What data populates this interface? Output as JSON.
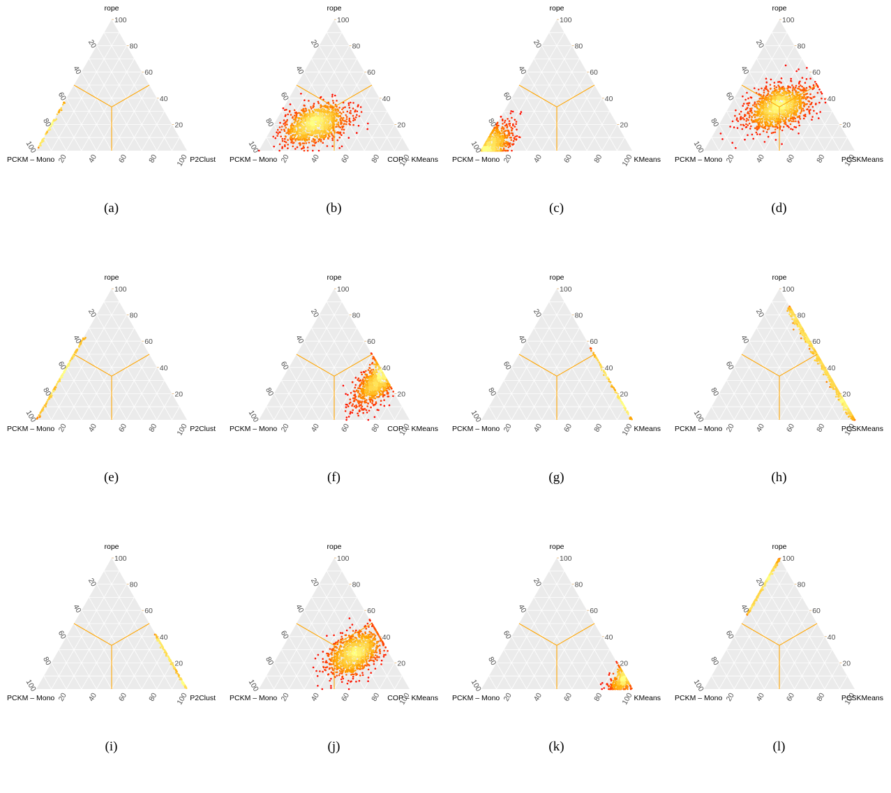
{
  "figure": {
    "panels": [
      {
        "caption": "(a)",
        "top": "rope",
        "left": "PCKM – Mono",
        "right": "P2Clust"
      },
      {
        "caption": "(b)",
        "top": "rope",
        "left": "PCKM – Mono",
        "right": "COP – KMeans"
      },
      {
        "caption": "(c)",
        "top": "rope",
        "left": "PCKM – Mono",
        "right": "KMeans"
      },
      {
        "caption": "(d)",
        "top": "rope",
        "left": "PCKM – Mono",
        "right": "PCSKMeans"
      },
      {
        "caption": "(e)",
        "top": "rope",
        "left": "PCKM – Mono",
        "right": "P2Clust"
      },
      {
        "caption": "(f)",
        "top": "rope",
        "left": "PCKM – Mono",
        "right": "COP – KMeans"
      },
      {
        "caption": "(g)",
        "top": "rope",
        "left": "PCKM – Mono",
        "right": "KMeans"
      },
      {
        "caption": "(h)",
        "top": "rope",
        "left": "PCKM – Mono",
        "right": "PCSKMeans"
      },
      {
        "caption": "(i)",
        "top": "rope",
        "left": "PCKM – Mono",
        "right": "P2Clust"
      },
      {
        "caption": "(j)",
        "top": "rope",
        "left": "PCKM – Mono",
        "right": "COP – KMeans"
      },
      {
        "caption": "(k)",
        "top": "rope",
        "left": "PCKM – Mono",
        "right": "KMeans"
      },
      {
        "caption": "(l)",
        "top": "rope",
        "left": "PCKM – Mono",
        "right": "PCSKMeans"
      }
    ]
  },
  "colors": {
    "panel_bg": "#ebebeb",
    "grid": "#ffffff",
    "region_lines": "#ffa500",
    "density_low": "#ff0000",
    "density_high": "#ffff66"
  },
  "chart_data": [
    {
      "type": "scatter",
      "subtype": "ternary-density",
      "axes": [
        "rope",
        "PCKM – Mono",
        "P2Clust"
      ],
      "ticks": [
        20,
        40,
        60,
        80,
        100
      ],
      "clusters": [
        {
          "shape": "line",
          "from": [
            0,
            100,
            0
          ],
          "to": [
            38,
            62,
            0
          ],
          "n": 60,
          "jitter": 0.6
        }
      ]
    },
    {
      "type": "scatter",
      "subtype": "ternary-density",
      "axes": [
        "rope",
        "PCKM – Mono",
        "COP – KMeans"
      ],
      "ticks": [
        20,
        40,
        60,
        80,
        100
      ],
      "clusters": [
        {
          "shape": "blob",
          "center": [
            20,
            53,
            27
          ],
          "sd_rope": 8,
          "sd_right": 10,
          "n": 1100
        }
      ]
    },
    {
      "type": "scatter",
      "subtype": "ternary-density",
      "axes": [
        "rope",
        "PCKM – Mono",
        "KMeans"
      ],
      "ticks": [
        20,
        40,
        60,
        80,
        100
      ],
      "clusters": [
        {
          "shape": "blob",
          "center": [
            5,
            90,
            5
          ],
          "sd_rope": 8,
          "sd_right": 6,
          "n": 650
        }
      ]
    },
    {
      "type": "scatter",
      "subtype": "ternary-density",
      "axes": [
        "rope",
        "PCKM – Mono",
        "PCSKMeans"
      ],
      "ticks": [
        20,
        40,
        60,
        80,
        100
      ],
      "clusters": [
        {
          "shape": "blob",
          "center": [
            33,
            34,
            33
          ],
          "sd_rope": 9,
          "sd_right": 10,
          "n": 1300
        }
      ]
    },
    {
      "type": "scatter",
      "subtype": "ternary-density",
      "axes": [
        "rope",
        "PCKM – Mono",
        "P2Clust"
      ],
      "ticks": [
        20,
        40,
        60,
        80,
        100
      ],
      "clusters": [
        {
          "shape": "line",
          "from": [
            0,
            100,
            0
          ],
          "to": [
            63,
            37,
            0
          ],
          "n": 160,
          "jitter": 0.6
        }
      ]
    },
    {
      "type": "scatter",
      "subtype": "ternary-density",
      "axes": [
        "rope",
        "PCKM – Mono",
        "COP – KMeans"
      ],
      "ticks": [
        20,
        40,
        60,
        80,
        100
      ],
      "clusters": [
        {
          "shape": "blob",
          "center": [
            28,
            8,
            64
          ],
          "sd_rope": 10,
          "sd_right": 6,
          "n": 900
        }
      ]
    },
    {
      "type": "scatter",
      "subtype": "ternary-density",
      "axes": [
        "rope",
        "PCKM – Mono",
        "KMeans"
      ],
      "ticks": [
        20,
        40,
        60,
        80,
        100
      ],
      "clusters": [
        {
          "shape": "line",
          "from": [
            0,
            0,
            100
          ],
          "to": [
            55,
            0,
            45
          ],
          "n": 120,
          "jitter": 0.6
        }
      ]
    },
    {
      "type": "scatter",
      "subtype": "ternary-density",
      "axes": [
        "rope",
        "PCKM – Mono",
        "PCSKMeans"
      ],
      "ticks": [
        20,
        40,
        60,
        80,
        100
      ],
      "clusters": [
        {
          "shape": "line",
          "from": [
            0,
            0,
            100
          ],
          "to": [
            86,
            0,
            14
          ],
          "n": 700,
          "jitter": 1.6
        }
      ]
    },
    {
      "type": "scatter",
      "subtype": "ternary-density",
      "axes": [
        "rope",
        "PCKM – Mono",
        "P2Clust"
      ],
      "ticks": [
        20,
        40,
        60,
        80,
        100
      ],
      "clusters": [
        {
          "shape": "line",
          "from": [
            0,
            0,
            100
          ],
          "to": [
            42,
            0,
            58
          ],
          "n": 140,
          "jitter": 0.5
        }
      ]
    },
    {
      "type": "scatter",
      "subtype": "ternary-density",
      "axes": [
        "rope",
        "PCKM – Mono",
        "COP – KMeans"
      ],
      "ticks": [
        20,
        40,
        60,
        80,
        100
      ],
      "clusters": [
        {
          "shape": "blob",
          "center": [
            28,
            22,
            50
          ],
          "sd_rope": 9,
          "sd_right": 8,
          "n": 1100
        }
      ]
    },
    {
      "type": "scatter",
      "subtype": "ternary-density",
      "axes": [
        "rope",
        "PCKM – Mono",
        "KMeans"
      ],
      "ticks": [
        20,
        40,
        60,
        80,
        100
      ],
      "clusters": [
        {
          "shape": "blob",
          "center": [
            7,
            2,
            91
          ],
          "sd_rope": 5,
          "sd_right": 4,
          "n": 500
        }
      ]
    },
    {
      "type": "scatter",
      "subtype": "ternary-density",
      "axes": [
        "rope",
        "PCKM – Mono",
        "PCSKMeans"
      ],
      "ticks": [
        20,
        40,
        60,
        80,
        100
      ],
      "clusters": [
        {
          "shape": "line",
          "from": [
            100,
            0,
            0
          ],
          "to": [
            57,
            43,
            0
          ],
          "n": 220,
          "jitter": 0.6
        }
      ]
    }
  ]
}
